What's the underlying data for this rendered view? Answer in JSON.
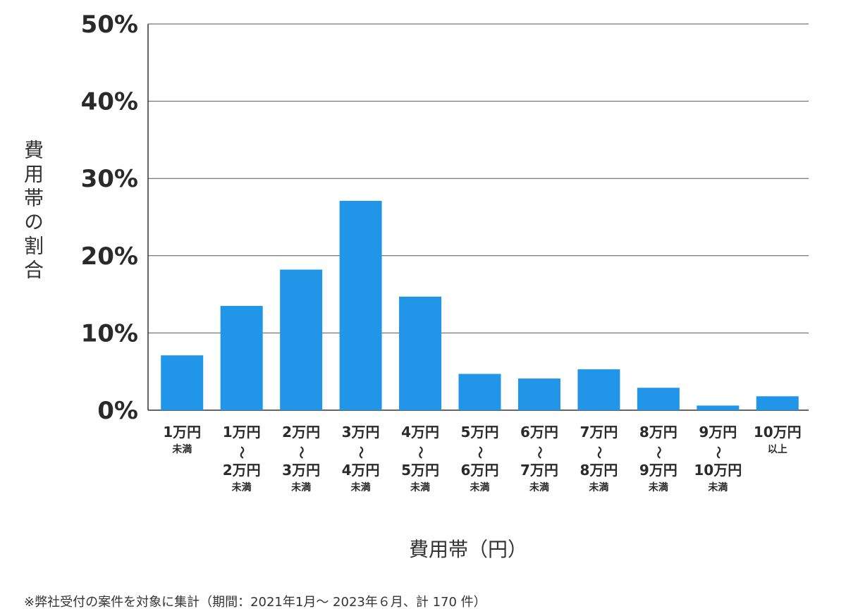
{
  "chart_data": {
    "type": "bar",
    "ylabel": "費用帯の割合",
    "xlabel": "費用帯（円）",
    "ylim": [
      0,
      50
    ],
    "yticks": [
      "0%",
      "10%",
      "20%",
      "30%",
      "40%",
      "50%"
    ],
    "grid": true,
    "bar_color": "#2196e8",
    "categories": [
      {
        "lines": [
          "1万円"
        ],
        "sub": "未満"
      },
      {
        "lines": [
          "1万円",
          "〜",
          "2万円"
        ],
        "sub": "未満"
      },
      {
        "lines": [
          "2万円",
          "〜",
          "3万円"
        ],
        "sub": "未満"
      },
      {
        "lines": [
          "3万円",
          "〜",
          "4万円"
        ],
        "sub": "未満"
      },
      {
        "lines": [
          "4万円",
          "〜",
          "5万円"
        ],
        "sub": "未満"
      },
      {
        "lines": [
          "5万円",
          "〜",
          "6万円"
        ],
        "sub": "未満"
      },
      {
        "lines": [
          "6万円",
          "〜",
          "7万円"
        ],
        "sub": "未満"
      },
      {
        "lines": [
          "7万円",
          "〜",
          "8万円"
        ],
        "sub": "未満"
      },
      {
        "lines": [
          "8万円",
          "〜",
          "9万円"
        ],
        "sub": "未満"
      },
      {
        "lines": [
          "9万円",
          "〜",
          "10万円"
        ],
        "sub": "未満"
      },
      {
        "lines": [
          "10万円"
        ],
        "sub": "以上"
      }
    ],
    "values": [
      7.1,
      13.5,
      18.2,
      27.1,
      14.7,
      4.7,
      4.1,
      5.3,
      2.9,
      0.6,
      1.8
    ]
  },
  "footnote": "※弊社受付の案件を対象に集計（期間：2021年1月～ 2023年６月、計 170 件）"
}
